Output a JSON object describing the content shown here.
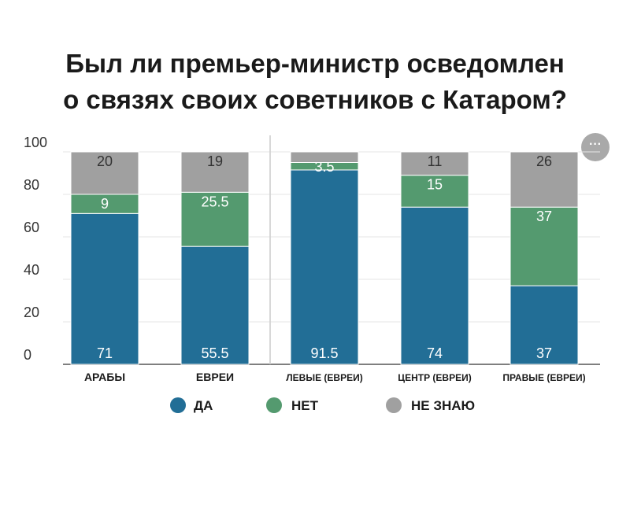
{
  "title_line1": "Был ли премьер-министр осведомлен",
  "title_line2": "о связях своих советников с Катаром?",
  "more_button_label": "···",
  "colors": {
    "yes": "#226e96",
    "no": "#549a6f",
    "dont_know": "#a0a0a0"
  },
  "chart_data": {
    "type": "bar",
    "stacked": true,
    "categories": [
      "АРАБЫ",
      "ЕВРЕИ",
      "ЛЕВЫЕ (ЕВРЕИ)",
      "ЦЕНТР (ЕВРЕИ)",
      "ПРАВЫЕ (ЕВРЕИ)"
    ],
    "series": [
      {
        "name": "ДА",
        "values": [
          71,
          55.5,
          91.5,
          74,
          37
        ],
        "labels": [
          "71",
          "55.5",
          "91.5",
          "74",
          "37"
        ]
      },
      {
        "name": "НЕТ",
        "values": [
          9,
          25.5,
          3.5,
          15,
          37
        ],
        "labels": [
          "9",
          "25.5",
          "3.5",
          "15",
          "37"
        ]
      },
      {
        "name": "НЕ ЗНАЮ",
        "values": [
          20,
          19,
          5,
          11,
          26
        ],
        "labels": [
          "20",
          "19",
          "",
          "11",
          "26"
        ]
      }
    ],
    "yticks": [
      "0",
      "20",
      "40",
      "60",
      "80",
      "100"
    ],
    "ylim": [
      0,
      100
    ],
    "legend": "bottom"
  }
}
